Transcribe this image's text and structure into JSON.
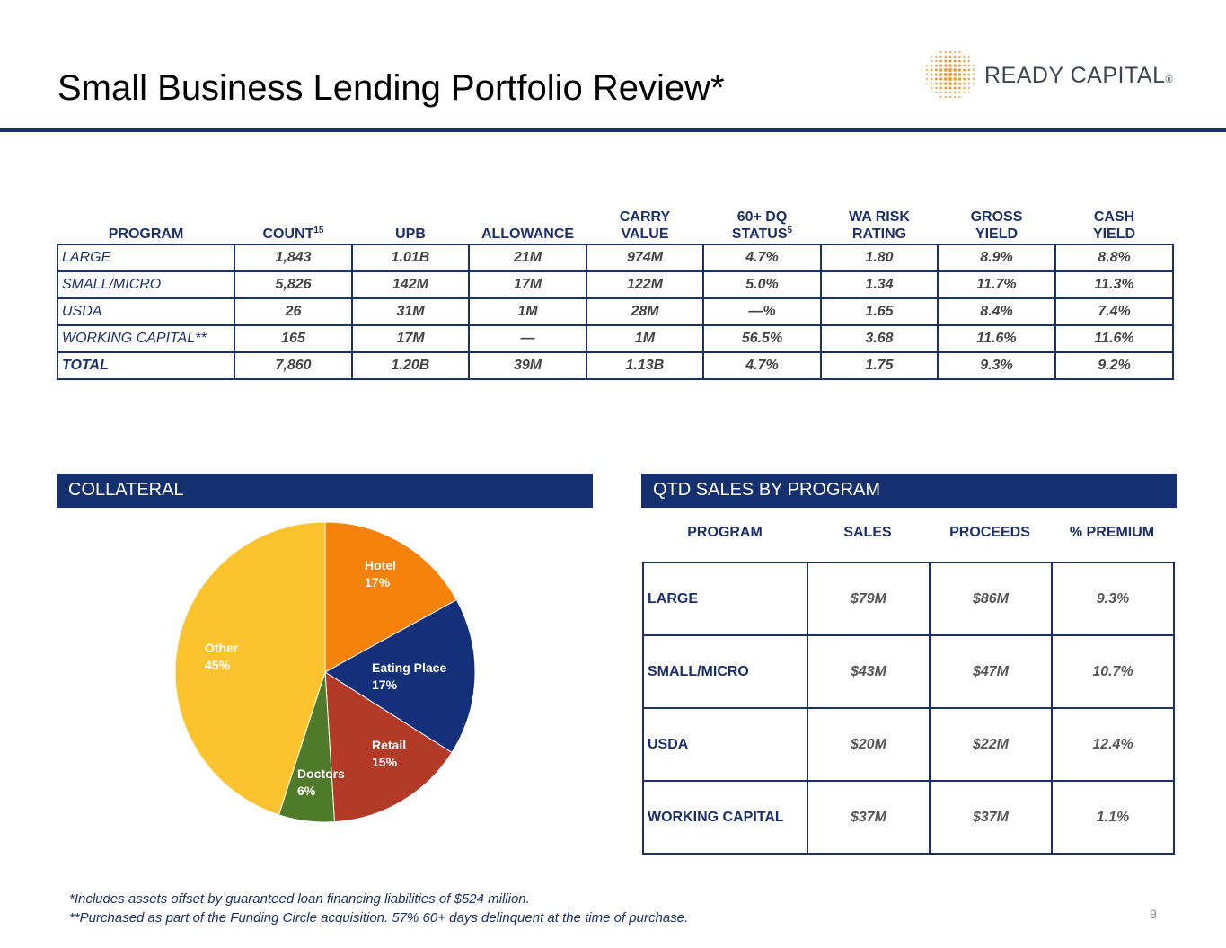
{
  "title": "Small Business Lending Portfolio Review*",
  "logo": {
    "text": "READY CAPITAL",
    "reg": "®"
  },
  "portfolio": {
    "headers": [
      {
        "main": "PROGRAM",
        "sup": ""
      },
      {
        "main": "COUNT",
        "sup": "15"
      },
      {
        "main": "UPB",
        "sup": ""
      },
      {
        "main": "ALLOWANCE",
        "sup": ""
      },
      {
        "main": "CARRY VALUE",
        "sup": ""
      },
      {
        "main": "60+ DQ STATUS",
        "sup": "5"
      },
      {
        "main": "WA RISK RATING",
        "sup": ""
      },
      {
        "main": "GROSS YIELD",
        "sup": ""
      },
      {
        "main": "CASH YIELD",
        "sup": ""
      }
    ],
    "rows": [
      [
        "LARGE",
        "1,843",
        "1.01B",
        "21M",
        "974M",
        "4.7%",
        "1.80",
        "8.9%",
        "8.8%"
      ],
      [
        "SMALL/MICRO",
        "5,826",
        "142M",
        "17M",
        "122M",
        "5.0%",
        "1.34",
        "11.7%",
        "11.3%"
      ],
      [
        "USDA",
        "26",
        "31M",
        "1M",
        "28M",
        "—%",
        "1.65",
        "8.4%",
        "7.4%"
      ],
      [
        "WORKING CAPITAL**",
        "165",
        "17M",
        "—",
        "1M",
        "56.5%",
        "3.68",
        "11.6%",
        "11.6%"
      ],
      [
        "TOTAL",
        "7,860",
        "1.20B",
        "39M",
        "1.13B",
        "4.7%",
        "1.75",
        "9.3%",
        "9.2%"
      ]
    ]
  },
  "collateral": {
    "section_title": "COLLATERAL",
    "chart_data": {
      "type": "pie",
      "title": "COLLATERAL",
      "slices": [
        {
          "label": "Hotel",
          "value": 17,
          "display": "17%",
          "color": "#f5820b"
        },
        {
          "label": "Eating Place",
          "value": 17,
          "display": "17%",
          "color": "#15307a"
        },
        {
          "label": "Retail",
          "value": 15,
          "display": "15%",
          "color": "#b33a27"
        },
        {
          "label": "Doctors",
          "value": 6,
          "display": "6%",
          "color": "#4f7a2a"
        },
        {
          "label": "Other",
          "value": 45,
          "display": "45%",
          "color": "#fcc32e"
        }
      ]
    }
  },
  "sales": {
    "section_title": "QTD SALES BY PROGRAM",
    "headers": [
      "PROGRAM",
      "SALES",
      "PROCEEDS",
      "% PREMIUM"
    ],
    "rows": [
      [
        "LARGE",
        "$79M",
        "$86M",
        "9.3%"
      ],
      [
        "SMALL/MICRO",
        "$43M",
        "$47M",
        "10.7%"
      ],
      [
        "USDA",
        "$20M",
        "$22M",
        "12.4%"
      ],
      [
        "WORKING CAPITAL",
        "$37M",
        "$37M",
        "1.1%"
      ]
    ]
  },
  "footnotes": [
    "*Includes assets offset by guaranteed loan financing liabilities of $524 million.",
    "**Purchased as part of the Funding Circle acquisition. 57% 60+ days delinquent at the time of purchase."
  ],
  "page_number": "9"
}
